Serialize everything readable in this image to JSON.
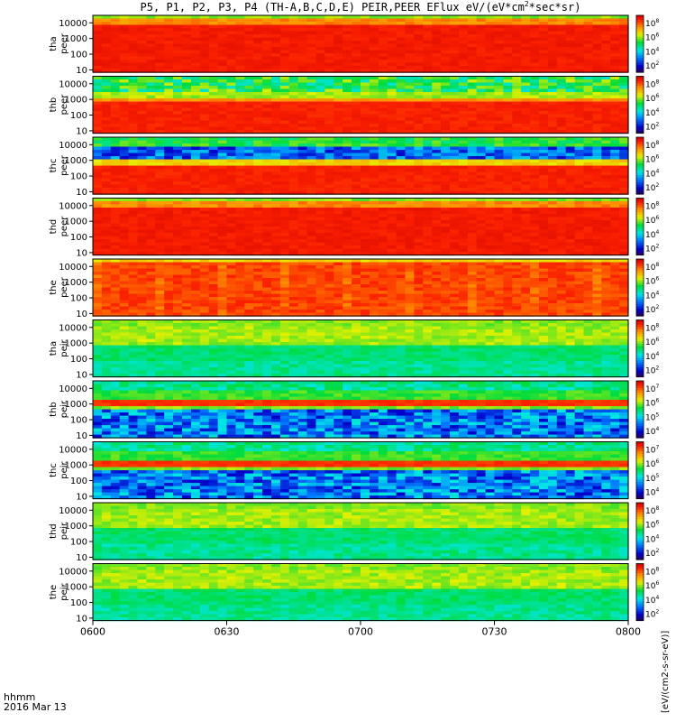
{
  "title": {
    "prefix": "P5, P1, P2, P3, P4 (TH-A,B,C,D,E) PEIR,PEER EFlux eV/(eV*cm",
    "sup": "2",
    "suffix": "*sec*sr)"
  },
  "footer": {
    "time_label": "hhmm",
    "date_label": "2016 Mar 13"
  },
  "colorbar_units": "[eV/(cm2-s-sr-eV)]",
  "colors": {
    "background": "#ffffff",
    "axis": "#000000"
  },
  "chart_data": {
    "type": "heatmap",
    "x_ticks": [
      "0600",
      "0630",
      "0700",
      "0730",
      "0800"
    ],
    "x_range": [
      "06:00",
      "08:00"
    ],
    "y_scale": "log",
    "y_ticks": [
      "10",
      "100",
      "1000",
      "10000"
    ],
    "y_range": [
      7,
      30000
    ],
    "colorscale": "rainbow (purple-blue-cyan-green-yellow-red)",
    "panels": [
      {
        "probe": "tha",
        "species": "peer",
        "label_top": "tha",
        "label_bottom": "peer",
        "colorbar_ticks": [
          "10",
          "10",
          "10",
          "10"
        ],
        "colorbar_exps": [
          "8",
          "6",
          "4",
          "2"
        ],
        "palette_profile": "electron_a"
      },
      {
        "probe": "thb",
        "species": "peer",
        "label_top": "thb",
        "label_bottom": "peer",
        "colorbar_ticks": [
          "10",
          "10",
          "10",
          "10"
        ],
        "colorbar_exps": [
          "8",
          "6",
          "4",
          "2"
        ],
        "palette_profile": "electron_b"
      },
      {
        "probe": "thc",
        "species": "peer",
        "label_top": "thc",
        "label_bottom": "peer",
        "colorbar_ticks": [
          "10",
          "10",
          "10",
          "10"
        ],
        "colorbar_exps": [
          "8",
          "6",
          "4",
          "2"
        ],
        "palette_profile": "electron_c"
      },
      {
        "probe": "thd",
        "species": "peer",
        "label_top": "thd",
        "label_bottom": "peer",
        "colorbar_ticks": [
          "10",
          "10",
          "10",
          "10"
        ],
        "colorbar_exps": [
          "8",
          "6",
          "4",
          "2"
        ],
        "palette_profile": "electron_a"
      },
      {
        "probe": "the",
        "species": "peer",
        "label_top": "the",
        "label_bottom": "peer",
        "colorbar_ticks": [
          "10",
          "10",
          "10",
          "10"
        ],
        "colorbar_exps": [
          "8",
          "6",
          "4",
          "2"
        ],
        "palette_profile": "electron_e"
      },
      {
        "probe": "tha",
        "species": "peir",
        "label_top": "tha",
        "label_bottom": "peir",
        "colorbar_ticks": [
          "10",
          "10",
          "10",
          "10"
        ],
        "colorbar_exps": [
          "8",
          "6",
          "4",
          "2"
        ],
        "palette_profile": "ion_a"
      },
      {
        "probe": "thb",
        "species": "peir",
        "label_top": "thb",
        "label_bottom": "peir",
        "colorbar_ticks": [
          "10",
          "10",
          "10",
          "10"
        ],
        "colorbar_exps": [
          "7",
          "6",
          "5",
          "4"
        ],
        "palette_profile": "ion_b"
      },
      {
        "probe": "thc",
        "species": "peir",
        "label_top": "thc",
        "label_bottom": "peir",
        "colorbar_ticks": [
          "10",
          "10",
          "10",
          "10"
        ],
        "colorbar_exps": [
          "7",
          "6",
          "5",
          "4"
        ],
        "palette_profile": "ion_b"
      },
      {
        "probe": "thd",
        "species": "peir",
        "label_top": "thd",
        "label_bottom": "peir",
        "colorbar_ticks": [
          "10",
          "10",
          "10",
          "10"
        ],
        "colorbar_exps": [
          "8",
          "6",
          "4",
          "2"
        ],
        "palette_profile": "ion_a"
      },
      {
        "probe": "the",
        "species": "peir",
        "label_top": "the",
        "label_bottom": "peir",
        "colorbar_ticks": [
          "10",
          "10",
          "10",
          "10"
        ],
        "colorbar_exps": [
          "8",
          "6",
          "4",
          "2"
        ],
        "palette_profile": "ion_a"
      }
    ]
  }
}
